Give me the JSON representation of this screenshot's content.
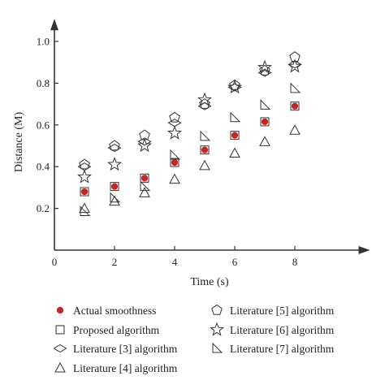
{
  "chart_data": {
    "type": "scatter",
    "xlabel": "Time (s)",
    "ylabel": "Distance (M)",
    "xlim": [
      0,
      10.5
    ],
    "ylim": [
      0,
      1.1
    ],
    "xticks": [
      0,
      2,
      4,
      6,
      8
    ],
    "yticks": [
      0.2,
      0.4,
      0.6,
      0.8,
      1.0
    ],
    "xtick_labels": [
      "0",
      "2",
      "4",
      "6",
      "8"
    ],
    "ytick_labels": [
      "0.2",
      "0.4",
      "0.6",
      "0.8",
      "1.0"
    ],
    "grid": false,
    "legend_position": "bottom",
    "x": [
      1,
      2,
      3,
      4,
      5,
      6,
      7,
      8
    ],
    "series": [
      {
        "name": "Actual smoothness",
        "marker": "filled-circle",
        "color": "#cc2222",
        "values": [
          0.28,
          0.305,
          0.345,
          0.42,
          0.48,
          0.55,
          0.615,
          0.69
        ]
      },
      {
        "name": "Proposed algorithm",
        "marker": "square",
        "color": "#333333",
        "values": [
          0.28,
          0.305,
          0.345,
          0.42,
          0.48,
          0.55,
          0.615,
          0.69
        ]
      },
      {
        "name": "Literature [3] algorithm",
        "marker": "diamond",
        "color": "#333333",
        "values": [
          0.4,
          0.49,
          0.52,
          0.61,
          0.69,
          0.78,
          0.85,
          0.89
        ]
      },
      {
        "name": "Literature [4] algorithm",
        "marker": "triangle",
        "color": "#333333",
        "values": [
          0.2,
          0.235,
          0.275,
          0.34,
          0.405,
          0.465,
          0.52,
          0.575
        ]
      },
      {
        "name": "Literature [5] algorithm",
        "marker": "pentagon",
        "color": "#333333",
        "values": [
          0.41,
          0.5,
          0.55,
          0.635,
          0.7,
          0.79,
          0.86,
          0.925
        ]
      },
      {
        "name": "Literature [6] algorithm",
        "marker": "star",
        "color": "#333333",
        "values": [
          0.35,
          0.41,
          0.5,
          0.56,
          0.72,
          0.78,
          0.875,
          0.88
        ]
      },
      {
        "name": "Literature [7] algorithm",
        "marker": "right-triangle",
        "color": "#333333",
        "values": [
          0.185,
          0.25,
          0.305,
          0.455,
          0.545,
          0.635,
          0.695,
          0.775
        ]
      }
    ]
  }
}
